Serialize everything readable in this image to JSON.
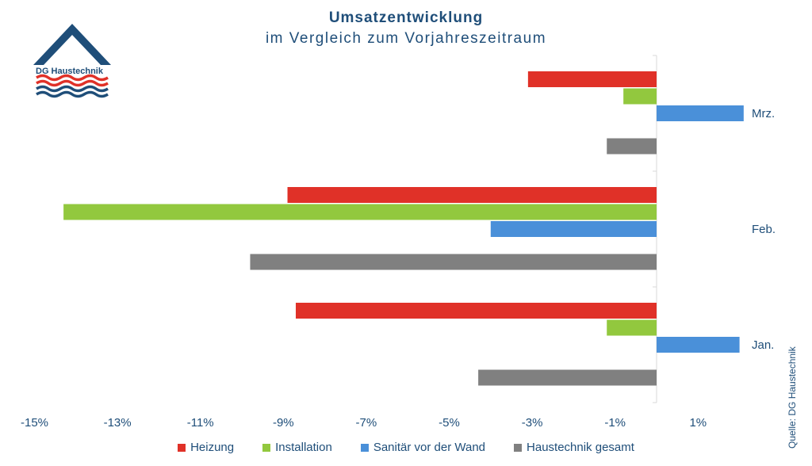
{
  "header": {
    "title": "Umsatzentwicklung",
    "subtitle": "im Vergleich zum Vorjahreszeitraum"
  },
  "logo": {
    "text": "DG Haustechnik",
    "colors": {
      "roof": "#1f4e79",
      "wave_red": "#e03128",
      "wave_blue": "#1f4e79"
    }
  },
  "source": "Quelle: DG Haustechnik",
  "chart_data": {
    "type": "bar",
    "orientation": "horizontal",
    "categories": [
      "Mrz.",
      "Feb.",
      "Jan."
    ],
    "x_ticks": [
      -15,
      -13,
      -11,
      -9,
      -7,
      -5,
      -3,
      -1,
      1
    ],
    "x_tick_labels": [
      "-15%",
      "-13%",
      "-11%",
      "-9%",
      "-7%",
      "-5%",
      "-3%",
      "-1%",
      "1%"
    ],
    "xlim": [
      -16,
      2
    ],
    "unit": "%",
    "grid": false,
    "legend_position": "bottom",
    "series": [
      {
        "name": "Heizung",
        "color": "#e03128",
        "values": [
          -3.1,
          -8.9,
          -8.7
        ]
      },
      {
        "name": "Installation",
        "color": "#92c83e",
        "values": [
          -0.8,
          -14.3,
          -1.2
        ]
      },
      {
        "name": "Sanitär vor der Wand",
        "color": "#4a90d9",
        "values": [
          2.1,
          -4.0,
          2.0
        ]
      },
      {
        "name": "Haustechnik gesamt",
        "color": "#808080",
        "values": [
          -1.2,
          -9.8,
          -4.3
        ]
      }
    ]
  }
}
